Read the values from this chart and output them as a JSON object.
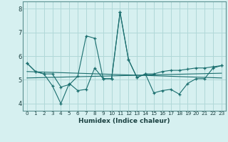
{
  "xlabel": "Humidex (Indice chaleur)",
  "background_color": "#d6f0f0",
  "grid_color": "#b0d8d8",
  "line_color": "#1a6e6e",
  "xlim": [
    -0.5,
    23.5
  ],
  "ylim": [
    3.7,
    8.3
  ],
  "yticks": [
    4,
    5,
    6,
    7,
    8
  ],
  "xticks": [
    0,
    1,
    2,
    3,
    4,
    5,
    6,
    7,
    8,
    9,
    10,
    11,
    12,
    13,
    14,
    15,
    16,
    17,
    18,
    19,
    20,
    21,
    22,
    23
  ],
  "series1_x": [
    0,
    1,
    2,
    3,
    4,
    5,
    6,
    7,
    8,
    9,
    10,
    11,
    12,
    13,
    14,
    15,
    16,
    17,
    18,
    19,
    20,
    21,
    22,
    23
  ],
  "series1_y": [
    5.7,
    5.35,
    5.25,
    5.25,
    4.7,
    4.8,
    5.15,
    6.85,
    6.75,
    5.05,
    5.05,
    7.85,
    5.85,
    5.1,
    5.25,
    5.25,
    5.35,
    5.4,
    5.4,
    5.45,
    5.5,
    5.5,
    5.55,
    5.6
  ],
  "series2_x": [
    0,
    1,
    2,
    3,
    4,
    5,
    6,
    7,
    8,
    9,
    10,
    11,
    12,
    13,
    14,
    15,
    16,
    17,
    18,
    19,
    20,
    21,
    22,
    23
  ],
  "series2_y": [
    5.7,
    5.35,
    5.25,
    4.75,
    4.0,
    4.85,
    4.55,
    4.6,
    5.5,
    5.05,
    5.05,
    7.85,
    5.85,
    5.1,
    5.25,
    4.45,
    4.55,
    4.6,
    4.4,
    4.85,
    5.05,
    5.05,
    5.5,
    5.6
  ],
  "trend1_x": [
    0,
    23
  ],
  "trend1_y": [
    5.35,
    5.08
  ],
  "trend2_x": [
    0,
    23
  ],
  "trend2_y": [
    5.08,
    5.28
  ]
}
